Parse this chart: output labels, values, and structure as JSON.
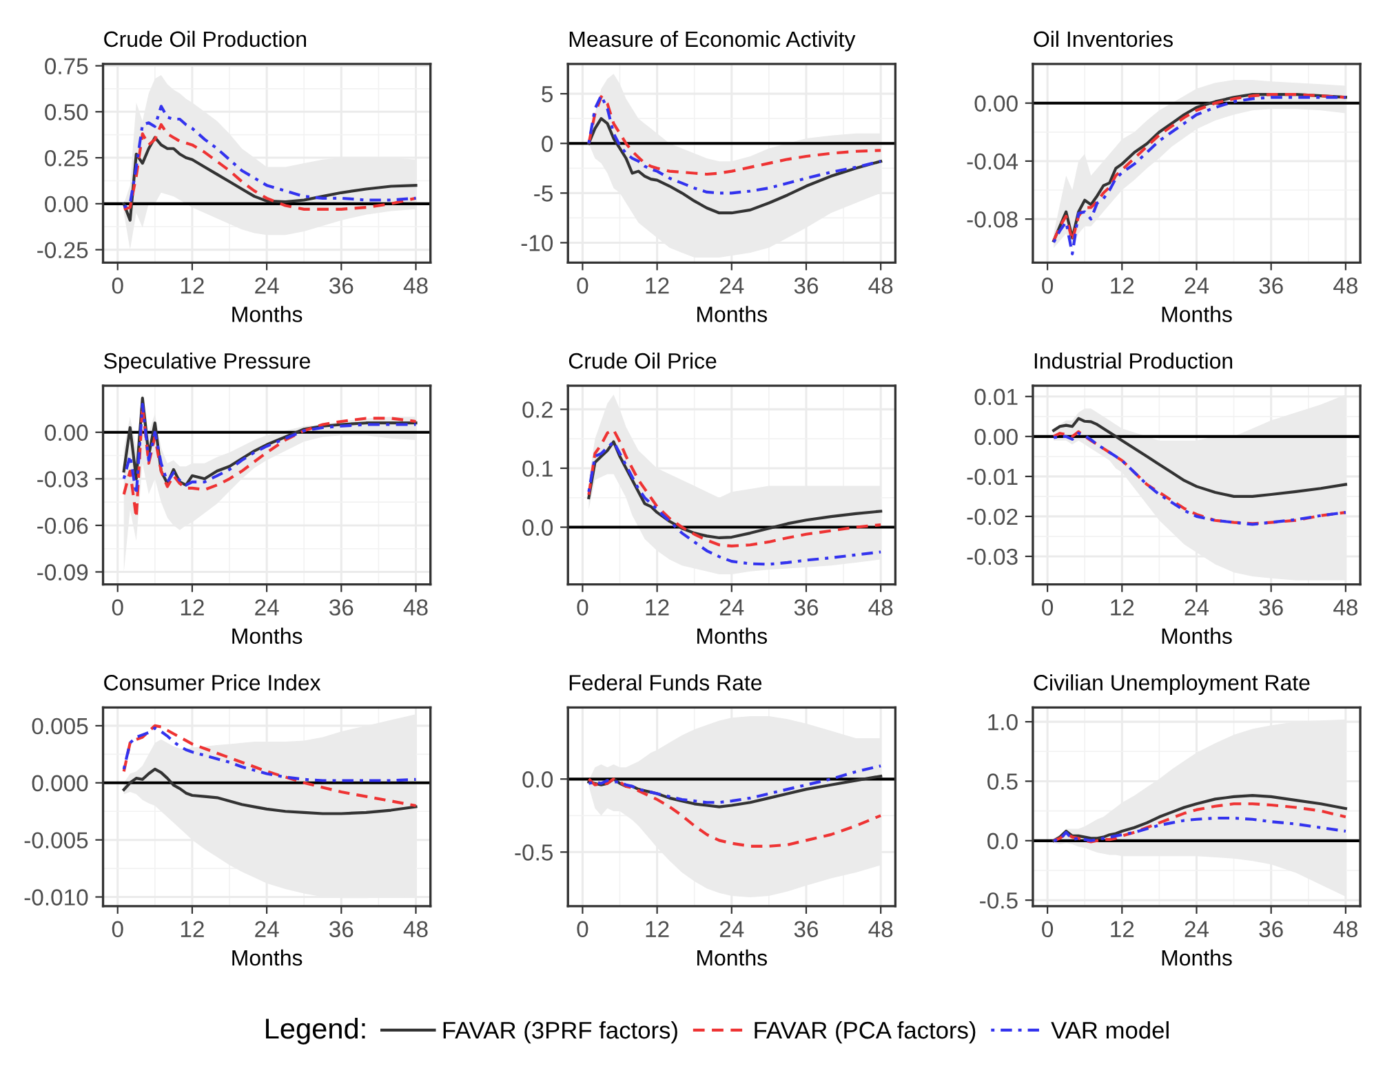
{
  "chart_data": [
    {
      "type": "line",
      "title": "Crude Oil Production",
      "xlabel": "Months",
      "grid": true,
      "xlim": [
        -2.35,
        50.35
      ],
      "xticks": [
        0,
        12,
        24,
        36,
        48
      ],
      "ylim": [
        -0.32,
        0.76
      ],
      "yticks": [
        {
          "value": -0.25,
          "label": "-0.25"
        },
        {
          "value": 0,
          "label": "0.00"
        },
        {
          "value": 0.25,
          "label": "0.25"
        },
        {
          "value": 0.5,
          "label": "0.50"
        },
        {
          "value": 0.75,
          "label": "0.75"
        }
      ],
      "ref_lines": [
        {
          "axis": "y",
          "value": 0,
          "color": "#000000"
        }
      ],
      "legend": "bottom",
      "legend_title": "Legend:",
      "x": [
        1,
        2,
        3,
        4,
        5,
        6,
        7,
        8,
        9,
        10,
        11,
        12,
        14,
        16,
        18,
        20,
        22,
        24,
        27,
        30,
        33,
        36,
        40,
        44,
        48
      ],
      "series": [
        {
          "name": "FAVAR (3PRF factors)",
          "color": "#333333",
          "line_style": "solid",
          "values": [
            0.0,
            -0.09,
            0.27,
            0.22,
            0.3,
            0.36,
            0.32,
            0.3,
            0.3,
            0.27,
            0.25,
            0.24,
            0.2,
            0.16,
            0.12,
            0.08,
            0.04,
            0.015,
            0.01,
            0.02,
            0.04,
            0.06,
            0.08,
            0.095,
            0.1
          ],
          "upper": [
            0.0,
            0.1,
            0.55,
            0.45,
            0.6,
            0.68,
            0.7,
            0.65,
            0.62,
            0.6,
            0.57,
            0.55,
            0.5,
            0.45,
            0.38,
            0.3,
            0.25,
            0.2,
            0.2,
            0.22,
            0.24,
            0.25,
            0.25,
            0.25,
            0.24
          ],
          "lower": [
            -0.05,
            -0.25,
            -0.05,
            -0.13,
            0.0,
            0.0,
            0.06,
            0.05,
            0.04,
            0.02,
            0.0,
            -0.02,
            -0.05,
            -0.08,
            -0.11,
            -0.14,
            -0.16,
            -0.17,
            -0.17,
            -0.15,
            -0.12,
            -0.09,
            -0.06,
            -0.04,
            -0.03
          ]
        },
        {
          "name": "FAVAR (PCA factors)",
          "color": "#ee3333",
          "line_style": "dashed",
          "values": [
            -0.03,
            -0.02,
            0.15,
            0.38,
            0.32,
            0.35,
            0.43,
            0.38,
            0.36,
            0.34,
            0.33,
            0.32,
            0.28,
            0.23,
            0.18,
            0.12,
            0.07,
            0.03,
            -0.01,
            -0.03,
            -0.03,
            -0.03,
            -0.02,
            0.0,
            0.03
          ]
        },
        {
          "name": "VAR model",
          "color": "#3333ee",
          "line_style": "dotted",
          "values": [
            -0.02,
            0.0,
            0.2,
            0.43,
            0.44,
            0.42,
            0.53,
            0.47,
            0.46,
            0.46,
            0.43,
            0.41,
            0.35,
            0.3,
            0.24,
            0.18,
            0.14,
            0.1,
            0.07,
            0.04,
            0.03,
            0.03,
            0.02,
            0.02,
            0.03
          ]
        }
      ]
    },
    {
      "type": "line",
      "title": "Measure of Economic Activity",
      "xlabel": "Months",
      "grid": true,
      "xlim": [
        -2.35,
        50.35
      ],
      "xticks": [
        0,
        12,
        24,
        36,
        48
      ],
      "ylim": [
        -12,
        8
      ],
      "yticks": [
        -10,
        -5,
        0,
        5
      ],
      "ref_lines": [
        {
          "axis": "y",
          "value": 0,
          "color": "#000000"
        }
      ],
      "x": [
        1,
        2,
        3,
        4,
        5,
        6,
        7,
        8,
        9,
        10,
        11,
        12,
        14,
        16,
        18,
        20,
        22,
        24,
        27,
        30,
        33,
        36,
        40,
        44,
        48
      ],
      "series": [
        {
          "name": "FAVAR (3PRF factors)",
          "color": "#333333",
          "line_style": "solid",
          "values": [
            0,
            1.5,
            2.5,
            2.0,
            0.5,
            -0.5,
            -1.5,
            -3.0,
            -2.8,
            -3.3,
            -3.6,
            -3.7,
            -4.3,
            -5.0,
            -5.8,
            -6.5,
            -7.0,
            -7.0,
            -6.7,
            -6.0,
            -5.2,
            -4.3,
            -3.3,
            -2.5,
            -1.8
          ],
          "upper": [
            0,
            3,
            5.5,
            6.5,
            7,
            6,
            4.5,
            3.5,
            2.5,
            2,
            1.5,
            1,
            0,
            -0.5,
            -1,
            -1.5,
            -1.8,
            -1.8,
            -1.3,
            -0.5,
            0,
            0.5,
            0.8,
            1,
            1
          ],
          "lower": [
            0,
            -1.5,
            -2,
            -3,
            -4.5,
            -5,
            -6,
            -7,
            -8,
            -8.5,
            -9,
            -9.5,
            -10.5,
            -11,
            -11.5,
            -11.5,
            -11.5,
            -11.3,
            -11,
            -10.5,
            -9.5,
            -8.5,
            -7,
            -6,
            -5
          ]
        },
        {
          "name": "FAVAR (PCA factors)",
          "color": "#ee3333",
          "line_style": "dashed",
          "values": [
            0,
            3.0,
            4.7,
            4.0,
            2.0,
            1.0,
            0.0,
            -0.8,
            -1.4,
            -2.0,
            -2.3,
            -2.5,
            -2.8,
            -2.9,
            -3.0,
            -3.1,
            -3.0,
            -2.8,
            -2.4,
            -2.0,
            -1.6,
            -1.3,
            -1.0,
            -0.8,
            -0.7
          ]
        },
        {
          "name": "VAR model",
          "color": "#3333ee",
          "line_style": "dotted",
          "values": [
            0,
            3.5,
            4.8,
            3.5,
            1.0,
            -0.2,
            -1.0,
            -1.5,
            -1.8,
            -2.3,
            -2.6,
            -2.8,
            -3.5,
            -4.0,
            -4.5,
            -4.9,
            -5.0,
            -5.0,
            -4.8,
            -4.5,
            -4.0,
            -3.5,
            -2.9,
            -2.4,
            -1.8
          ]
        }
      ]
    },
    {
      "type": "line",
      "title": "Oil Inventories",
      "xlabel": "Months",
      "grid": true,
      "xlim": [
        -2.35,
        50.35
      ],
      "xticks": [
        0,
        12,
        24,
        36,
        48
      ],
      "ylim": [
        -0.11,
        0.027
      ],
      "yticks": [
        {
          "value": -0.08,
          "label": "-0.08"
        },
        {
          "value": -0.04,
          "label": "-0.04"
        },
        {
          "value": 0,
          "label": "0.00"
        }
      ],
      "ref_lines": [
        {
          "axis": "y",
          "value": 0,
          "color": "#000000"
        }
      ],
      "x": [
        1,
        2,
        3,
        4,
        5,
        6,
        7,
        8,
        9,
        10,
        11,
        12,
        14,
        16,
        18,
        20,
        22,
        24,
        27,
        30,
        33,
        36,
        40,
        44,
        48
      ],
      "series": [
        {
          "name": "FAVAR (3PRF factors)",
          "color": "#333333",
          "line_style": "solid",
          "values": [
            -0.095,
            -0.085,
            -0.075,
            -0.093,
            -0.075,
            -0.067,
            -0.07,
            -0.064,
            -0.057,
            -0.055,
            -0.045,
            -0.042,
            -0.034,
            -0.028,
            -0.02,
            -0.014,
            -0.008,
            -0.003,
            0.001,
            0.004,
            0.006,
            0.006,
            0.006,
            0.005,
            0.004
          ],
          "upper": [
            -0.09,
            -0.07,
            -0.05,
            -0.06,
            -0.04,
            -0.035,
            -0.05,
            -0.045,
            -0.04,
            -0.035,
            -0.03,
            -0.025,
            -0.02,
            -0.012,
            -0.005,
            0.0,
            0.005,
            0.01,
            0.014,
            0.016,
            0.016,
            0.015,
            0.014,
            0.013,
            0.012
          ],
          "lower": [
            -0.1,
            -0.095,
            -0.09,
            -0.1,
            -0.09,
            -0.085,
            -0.085,
            -0.08,
            -0.075,
            -0.07,
            -0.065,
            -0.06,
            -0.053,
            -0.045,
            -0.038,
            -0.03,
            -0.024,
            -0.018,
            -0.012,
            -0.008,
            -0.005,
            -0.004,
            -0.004,
            -0.005,
            -0.007
          ]
        },
        {
          "name": "FAVAR (PCA factors)",
          "color": "#ee3333",
          "line_style": "dashed",
          "values": [
            -0.095,
            -0.085,
            -0.078,
            -0.095,
            -0.078,
            -0.072,
            -0.072,
            -0.068,
            -0.062,
            -0.058,
            -0.05,
            -0.046,
            -0.038,
            -0.03,
            -0.022,
            -0.016,
            -0.01,
            -0.005,
            0.0,
            0.003,
            0.005,
            0.006,
            0.006,
            0.005,
            0.004
          ]
        },
        {
          "name": "VAR model",
          "color": "#3333ee",
          "line_style": "dotted",
          "values": [
            -0.096,
            -0.088,
            -0.082,
            -0.104,
            -0.076,
            -0.075,
            -0.08,
            -0.069,
            -0.066,
            -0.06,
            -0.052,
            -0.048,
            -0.042,
            -0.034,
            -0.026,
            -0.02,
            -0.014,
            -0.008,
            -0.003,
            0.001,
            0.003,
            0.004,
            0.004,
            0.004,
            0.004
          ]
        }
      ]
    },
    {
      "type": "line",
      "title": "Speculative Pressure",
      "xlabel": "Months",
      "grid": true,
      "xlim": [
        -2.35,
        50.35
      ],
      "xticks": [
        0,
        12,
        24,
        36,
        48
      ],
      "ylim": [
        -0.098,
        0.03
      ],
      "yticks": [
        {
          "value": -0.09,
          "label": "-0.09"
        },
        {
          "value": -0.06,
          "label": "-0.06"
        },
        {
          "value": -0.03,
          "label": "-0.03"
        },
        {
          "value": 0,
          "label": "0.00"
        }
      ],
      "ref_lines": [
        {
          "axis": "y",
          "value": 0,
          "color": "#000000"
        }
      ],
      "x": [
        1,
        2,
        3,
        4,
        5,
        6,
        7,
        8,
        9,
        10,
        11,
        12,
        14,
        16,
        18,
        20,
        22,
        24,
        27,
        30,
        33,
        36,
        40,
        44,
        48
      ],
      "series": [
        {
          "name": "FAVAR (3PRF factors)",
          "color": "#333333",
          "line_style": "solid",
          "values": [
            -0.025,
            0.003,
            -0.03,
            0.022,
            -0.015,
            0.006,
            -0.025,
            -0.033,
            -0.024,
            -0.032,
            -0.034,
            -0.028,
            -0.03,
            -0.025,
            -0.022,
            -0.017,
            -0.012,
            -0.008,
            -0.003,
            0.002,
            0.004,
            0.005,
            0.006,
            0.006,
            0.006
          ],
          "upper": [
            -0.01,
            0.01,
            -0.01,
            0.025,
            0.0,
            0.012,
            -0.01,
            -0.02,
            -0.018,
            -0.022,
            -0.022,
            -0.02,
            -0.02,
            -0.016,
            -0.013,
            -0.009,
            -0.005,
            -0.002,
            0.001,
            0.004,
            0.005,
            0.007,
            0.009,
            0.01,
            0.01
          ],
          "lower": [
            -0.09,
            -0.05,
            -0.07,
            -0.02,
            -0.04,
            -0.03,
            -0.045,
            -0.055,
            -0.06,
            -0.063,
            -0.06,
            -0.058,
            -0.052,
            -0.046,
            -0.038,
            -0.03,
            -0.023,
            -0.018,
            -0.012,
            -0.006,
            -0.003,
            -0.002,
            -0.002,
            -0.004,
            -0.005
          ]
        },
        {
          "name": "FAVAR (PCA factors)",
          "color": "#ee3333",
          "line_style": "dashed",
          "values": [
            -0.04,
            -0.025,
            -0.055,
            0.017,
            -0.02,
            -0.003,
            -0.025,
            -0.035,
            -0.028,
            -0.033,
            -0.036,
            -0.036,
            -0.037,
            -0.034,
            -0.03,
            -0.025,
            -0.019,
            -0.013,
            -0.005,
            0.001,
            0.005,
            0.007,
            0.009,
            0.009,
            0.007
          ]
        },
        {
          "name": "VAR model",
          "color": "#3333ee",
          "line_style": "dotted",
          "values": [
            -0.03,
            -0.015,
            -0.04,
            0.018,
            -0.018,
            0.0,
            -0.02,
            -0.032,
            -0.026,
            -0.031,
            -0.034,
            -0.032,
            -0.032,
            -0.028,
            -0.024,
            -0.018,
            -0.013,
            -0.009,
            -0.004,
            0.001,
            0.003,
            0.004,
            0.005,
            0.005,
            0.005
          ]
        }
      ]
    },
    {
      "type": "line",
      "title": "Crude Oil Price",
      "xlabel": "Months",
      "grid": true,
      "xlim": [
        -2.35,
        50.35
      ],
      "xticks": [
        0,
        12,
        24,
        36,
        48
      ],
      "ylim": [
        -0.097,
        0.24
      ],
      "yticks": [
        {
          "value": 0,
          "label": "0.0"
        },
        0.1,
        0.2
      ],
      "ref_lines": [
        {
          "axis": "y",
          "value": 0,
          "color": "#000000"
        }
      ],
      "x": [
        1,
        2,
        3,
        4,
        5,
        6,
        7,
        8,
        9,
        10,
        11,
        12,
        14,
        16,
        18,
        20,
        22,
        24,
        27,
        30,
        33,
        36,
        40,
        44,
        48
      ],
      "series": [
        {
          "name": "FAVAR (3PRF factors)",
          "color": "#333333",
          "line_style": "solid",
          "values": [
            0.05,
            0.11,
            0.12,
            0.13,
            0.145,
            0.12,
            0.1,
            0.08,
            0.06,
            0.04,
            0.035,
            0.025,
            0.01,
            -0.002,
            -0.01,
            -0.015,
            -0.018,
            -0.017,
            -0.01,
            -0.002,
            0.006,
            0.012,
            0.018,
            0.023,
            0.027
          ],
          "upper": [
            0.08,
            0.15,
            0.18,
            0.21,
            0.225,
            0.2,
            0.17,
            0.15,
            0.13,
            0.12,
            0.11,
            0.1,
            0.09,
            0.08,
            0.07,
            0.06,
            0.05,
            0.06,
            0.065,
            0.07,
            0.07,
            0.07,
            0.07,
            0.07,
            0.07
          ],
          "lower": [
            0.03,
            0.08,
            0.085,
            0.09,
            0.09,
            0.07,
            0.05,
            0.02,
            0.0,
            -0.02,
            -0.03,
            -0.04,
            -0.055,
            -0.065,
            -0.07,
            -0.075,
            -0.08,
            -0.08,
            -0.075,
            -0.072,
            -0.07,
            -0.068,
            -0.065,
            -0.06,
            -0.055
          ]
        },
        {
          "name": "FAVAR (PCA factors)",
          "color": "#ee3333",
          "line_style": "dashed",
          "values": [
            0.055,
            0.125,
            0.14,
            0.16,
            0.165,
            0.145,
            0.12,
            0.1,
            0.08,
            0.065,
            0.05,
            0.035,
            0.015,
            0.0,
            -0.012,
            -0.022,
            -0.03,
            -0.032,
            -0.03,
            -0.025,
            -0.018,
            -0.012,
            -0.006,
            0.0,
            0.004
          ]
        },
        {
          "name": "VAR model",
          "color": "#3333ee",
          "line_style": "dotted",
          "values": [
            0.06,
            0.12,
            0.125,
            0.135,
            0.145,
            0.125,
            0.105,
            0.085,
            0.065,
            0.05,
            0.04,
            0.03,
            0.01,
            -0.01,
            -0.025,
            -0.04,
            -0.05,
            -0.058,
            -0.062,
            -0.063,
            -0.06,
            -0.056,
            -0.052,
            -0.047,
            -0.042
          ]
        }
      ]
    },
    {
      "type": "line",
      "title": "Industrial Production",
      "xlabel": "Months",
      "grid": true,
      "xlim": [
        -2.35,
        50.35
      ],
      "xticks": [
        0,
        12,
        24,
        36,
        48
      ],
      "ylim": [
        -0.037,
        0.0127
      ],
      "yticks": [
        {
          "value": -0.03,
          "label": "-0.03"
        },
        {
          "value": -0.02,
          "label": "-0.02"
        },
        {
          "value": -0.01,
          "label": "-0.01"
        },
        {
          "value": 0,
          "label": "0.00"
        },
        {
          "value": 0.01,
          "label": "0.01"
        }
      ],
      "ref_lines": [
        {
          "axis": "y",
          "value": 0,
          "color": "#000000"
        }
      ],
      "x": [
        1,
        2,
        3,
        4,
        5,
        6,
        7,
        8,
        9,
        10,
        11,
        12,
        14,
        16,
        18,
        20,
        22,
        24,
        27,
        30,
        33,
        36,
        40,
        44,
        48
      ],
      "series": [
        {
          "name": "FAVAR (3PRF factors)",
          "color": "#333333",
          "line_style": "solid",
          "values": [
            0.0015,
            0.0025,
            0.0028,
            0.0025,
            0.0045,
            0.0038,
            0.0037,
            0.003,
            0.002,
            0.001,
            0.0,
            -0.001,
            -0.003,
            -0.005,
            -0.007,
            -0.009,
            -0.011,
            -0.0125,
            -0.014,
            -0.015,
            -0.015,
            -0.0145,
            -0.0138,
            -0.013,
            -0.012
          ],
          "upper": [
            0.002,
            0.003,
            0.004,
            0.004,
            0.006,
            0.007,
            0.007,
            0.006,
            0.005,
            0.004,
            0.003,
            0.002,
            0.001,
            0.0,
            -0.001,
            -0.001,
            -0.001,
            -0.001,
            0.0,
            0.0,
            0.002,
            0.004,
            0.006,
            0.008,
            0.0105
          ],
          "lower": [
            -0.001,
            -0.001,
            -0.001,
            -0.002,
            -0.001,
            -0.002,
            -0.003,
            -0.004,
            -0.005,
            -0.006,
            -0.008,
            -0.009,
            -0.013,
            -0.017,
            -0.021,
            -0.024,
            -0.027,
            -0.029,
            -0.032,
            -0.034,
            -0.035,
            -0.0355,
            -0.036,
            -0.036,
            -0.036
          ]
        },
        {
          "name": "FAVAR (PCA factors)",
          "color": "#ee3333",
          "line_style": "dashed",
          "values": [
            0.0,
            0.0008,
            0.0005,
            0.0,
            0.0012,
            0.0,
            -0.001,
            -0.002,
            -0.003,
            -0.004,
            -0.005,
            -0.006,
            -0.009,
            -0.012,
            -0.014,
            -0.016,
            -0.018,
            -0.0195,
            -0.021,
            -0.0215,
            -0.0218,
            -0.0215,
            -0.021,
            -0.0198,
            -0.019
          ]
        },
        {
          "name": "VAR model",
          "color": "#3333ee",
          "line_style": "dotted",
          "values": [
            -0.0003,
            0.0,
            0.0,
            -0.0007,
            0.0008,
            0.0002,
            -0.0008,
            -0.002,
            -0.003,
            -0.004,
            -0.005,
            -0.006,
            -0.009,
            -0.012,
            -0.0145,
            -0.0165,
            -0.0185,
            -0.02,
            -0.021,
            -0.0215,
            -0.022,
            -0.0215,
            -0.0208,
            -0.0198,
            -0.019
          ]
        }
      ]
    },
    {
      "type": "line",
      "title": "Consumer Price Index",
      "xlabel": "Months",
      "grid": true,
      "xlim": [
        -2.35,
        50.35
      ],
      "xticks": [
        0,
        12,
        24,
        36,
        48
      ],
      "ylim": [
        -0.0108,
        0.0066
      ],
      "yticks": [
        {
          "value": -0.01,
          "label": "-0.010"
        },
        {
          "value": -0.005,
          "label": "-0.005"
        },
        {
          "value": 0,
          "label": "0.000"
        },
        {
          "value": 0.005,
          "label": "0.005"
        }
      ],
      "ref_lines": [
        {
          "axis": "y",
          "value": 0,
          "color": "#000000"
        }
      ],
      "x": [
        1,
        2,
        3,
        4,
        5,
        6,
        7,
        8,
        9,
        10,
        11,
        12,
        14,
        16,
        18,
        20,
        22,
        24,
        27,
        30,
        33,
        36,
        40,
        44,
        48
      ],
      "series": [
        {
          "name": "FAVAR (3PRF factors)",
          "color": "#333333",
          "line_style": "solid",
          "values": [
            -0.0006,
            0.0,
            0.0004,
            0.0003,
            0.0008,
            0.0012,
            0.0009,
            0.0004,
            -0.0002,
            -0.0005,
            -0.0009,
            -0.0011,
            -0.0012,
            -0.0013,
            -0.0016,
            -0.0019,
            -0.0021,
            -0.0023,
            -0.0025,
            -0.0026,
            -0.0027,
            -0.0027,
            -0.0026,
            -0.0024,
            -0.0021
          ],
          "upper": [
            0.0,
            0.0008,
            0.001,
            0.0015,
            0.0025,
            0.0035,
            0.0038,
            0.0035,
            0.0032,
            0.003,
            0.003,
            0.0031,
            0.0032,
            0.0033,
            0.0034,
            0.0035,
            0.0036,
            0.0036,
            0.0036,
            0.0037,
            0.004,
            0.0045,
            0.005,
            0.0055,
            0.006
          ],
          "lower": [
            -0.001,
            -0.0008,
            -0.001,
            -0.0015,
            -0.0018,
            -0.002,
            -0.0025,
            -0.003,
            -0.0035,
            -0.004,
            -0.0045,
            -0.005,
            -0.0058,
            -0.0065,
            -0.0072,
            -0.0078,
            -0.0083,
            -0.0088,
            -0.0093,
            -0.0097,
            -0.01,
            -0.0101,
            -0.0101,
            -0.01,
            -0.0099
          ]
        },
        {
          "name": "FAVAR (PCA factors)",
          "color": "#ee3333",
          "line_style": "dashed",
          "values": [
            0.001,
            0.0035,
            0.0038,
            0.004,
            0.0045,
            0.005,
            0.0049,
            0.0046,
            0.0043,
            0.004,
            0.0037,
            0.0034,
            0.003,
            0.0026,
            0.0022,
            0.0018,
            0.0014,
            0.001,
            0.0005,
            0.0,
            -0.0004,
            -0.0008,
            -0.0012,
            -0.0016,
            -0.002
          ]
        },
        {
          "name": "VAR model",
          "color": "#3333ee",
          "line_style": "dotted",
          "values": [
            0.0012,
            0.0035,
            0.004,
            0.0042,
            0.0044,
            0.0048,
            0.0045,
            0.0041,
            0.0036,
            0.0032,
            0.0029,
            0.0027,
            0.0024,
            0.0021,
            0.0018,
            0.0014,
            0.0011,
            0.0008,
            0.0005,
            0.0003,
            0.0002,
            0.0002,
            0.0002,
            0.0002,
            0.0003
          ]
        }
      ]
    },
    {
      "type": "line",
      "title": "Federal Funds Rate",
      "xlabel": "Months",
      "grid": true,
      "xlim": [
        -2.35,
        50.35
      ],
      "xticks": [
        0,
        12,
        24,
        36,
        48
      ],
      "ylim": [
        -0.87,
        0.49
      ],
      "yticks": [
        {
          "value": -0.5,
          "label": "-0.5"
        },
        {
          "value": 0,
          "label": "0.0"
        }
      ],
      "ref_lines": [
        {
          "axis": "y",
          "value": 0,
          "color": "#000000"
        }
      ],
      "x": [
        1,
        2,
        3,
        4,
        5,
        6,
        7,
        8,
        9,
        10,
        11,
        12,
        14,
        16,
        18,
        20,
        22,
        24,
        27,
        30,
        33,
        36,
        40,
        44,
        48
      ],
      "series": [
        {
          "name": "FAVAR (3PRF factors)",
          "color": "#333333",
          "line_style": "solid",
          "values": [
            -0.02,
            -0.03,
            -0.04,
            -0.03,
            0.0,
            -0.03,
            -0.05,
            -0.05,
            -0.07,
            -0.08,
            -0.09,
            -0.1,
            -0.13,
            -0.15,
            -0.17,
            -0.18,
            -0.19,
            -0.18,
            -0.16,
            -0.13,
            -0.1,
            -0.07,
            -0.04,
            -0.01,
            0.02
          ],
          "upper": [
            -0.01,
            0.08,
            0.1,
            0.08,
            0.1,
            0.08,
            0.08,
            0.1,
            0.12,
            0.15,
            0.18,
            0.2,
            0.25,
            0.3,
            0.34,
            0.37,
            0.4,
            0.42,
            0.43,
            0.43,
            0.41,
            0.38,
            0.33,
            0.28,
            0.28
          ],
          "lower": [
            -0.05,
            -0.2,
            -0.25,
            -0.2,
            -0.22,
            -0.22,
            -0.25,
            -0.28,
            -0.32,
            -0.37,
            -0.42,
            -0.47,
            -0.56,
            -0.64,
            -0.7,
            -0.75,
            -0.78,
            -0.8,
            -0.81,
            -0.8,
            -0.77,
            -0.73,
            -0.68,
            -0.64,
            -0.59
          ]
        },
        {
          "name": "FAVAR (PCA factors)",
          "color": "#ee3333",
          "line_style": "dashed",
          "values": [
            0.0,
            -0.04,
            -0.03,
            -0.03,
            0.0,
            -0.02,
            -0.05,
            -0.06,
            -0.08,
            -0.1,
            -0.12,
            -0.14,
            -0.19,
            -0.25,
            -0.32,
            -0.38,
            -0.42,
            -0.44,
            -0.46,
            -0.46,
            -0.45,
            -0.42,
            -0.38,
            -0.32,
            -0.25
          ]
        },
        {
          "name": "VAR model",
          "color": "#3333ee",
          "line_style": "dotted",
          "values": [
            -0.03,
            -0.02,
            -0.03,
            -0.01,
            -0.02,
            -0.02,
            -0.04,
            -0.05,
            -0.07,
            -0.08,
            -0.09,
            -0.1,
            -0.12,
            -0.14,
            -0.15,
            -0.16,
            -0.16,
            -0.15,
            -0.13,
            -0.1,
            -0.07,
            -0.04,
            0.0,
            0.05,
            0.09
          ]
        }
      ]
    },
    {
      "type": "line",
      "title": "Civilian Unemployment Rate",
      "xlabel": "Months",
      "grid": true,
      "xlim": [
        -2.35,
        50.35
      ],
      "xticks": [
        0,
        12,
        24,
        36,
        48
      ],
      "ylim": [
        -0.55,
        1.12
      ],
      "yticks": [
        {
          "value": -0.5,
          "label": "-0.5"
        },
        {
          "value": 0,
          "label": "0.0"
        },
        {
          "value": 0.5,
          "label": "0.5"
        },
        {
          "value": 1,
          "label": "1.0"
        }
      ],
      "ref_lines": [
        {
          "axis": "y",
          "value": 0,
          "color": "#000000"
        }
      ],
      "x": [
        1,
        2,
        3,
        4,
        5,
        6,
        7,
        8,
        9,
        10,
        11,
        12,
        14,
        16,
        18,
        20,
        22,
        24,
        27,
        30,
        33,
        36,
        40,
        44,
        48
      ],
      "series": [
        {
          "name": "FAVAR (3PRF factors)",
          "color": "#333333",
          "line_style": "solid",
          "values": [
            0.0,
            0.03,
            0.08,
            0.04,
            0.04,
            0.03,
            0.02,
            0.02,
            0.03,
            0.05,
            0.06,
            0.08,
            0.11,
            0.15,
            0.2,
            0.24,
            0.28,
            0.31,
            0.35,
            0.37,
            0.38,
            0.37,
            0.34,
            0.31,
            0.27
          ],
          "upper": [
            0.02,
            0.05,
            0.1,
            0.1,
            0.1,
            0.12,
            0.15,
            0.18,
            0.2,
            0.24,
            0.28,
            0.32,
            0.38,
            0.45,
            0.52,
            0.6,
            0.67,
            0.74,
            0.82,
            0.89,
            0.94,
            0.97,
            1.0,
            1.01,
            1.02
          ],
          "lower": [
            -0.02,
            -0.03,
            -0.02,
            -0.03,
            -0.05,
            -0.06,
            -0.08,
            -0.1,
            -0.11,
            -0.12,
            -0.12,
            -0.13,
            -0.13,
            -0.13,
            -0.13,
            -0.13,
            -0.13,
            -0.13,
            -0.14,
            -0.15,
            -0.17,
            -0.2,
            -0.27,
            -0.37,
            -0.47
          ]
        },
        {
          "name": "FAVAR (PCA factors)",
          "color": "#ee3333",
          "line_style": "dashed",
          "values": [
            0.0,
            0.02,
            0.06,
            0.03,
            0.02,
            0.0,
            -0.01,
            0.0,
            0.01,
            0.01,
            0.02,
            0.04,
            0.07,
            0.11,
            0.15,
            0.19,
            0.23,
            0.26,
            0.29,
            0.31,
            0.31,
            0.3,
            0.28,
            0.25,
            0.2
          ]
        },
        {
          "name": "VAR model",
          "color": "#3333ee",
          "line_style": "dotted",
          "values": [
            0.0,
            0.01,
            0.07,
            0.01,
            0.02,
            0.01,
            0.0,
            0.01,
            0.02,
            0.03,
            0.04,
            0.05,
            0.07,
            0.1,
            0.13,
            0.15,
            0.17,
            0.18,
            0.19,
            0.19,
            0.18,
            0.16,
            0.14,
            0.11,
            0.08
          ]
        }
      ]
    }
  ]
}
